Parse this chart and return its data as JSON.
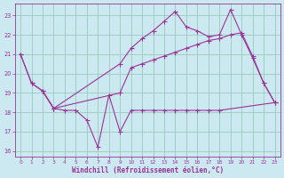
{
  "xlabel": "Windchill (Refroidissement éolien,°C)",
  "bg_color": "#cce8f0",
  "grid_color": "#99ccbb",
  "line_color": "#993399",
  "xlim": [
    -0.5,
    23.5
  ],
  "ylim": [
    15.7,
    23.6
  ],
  "yticks": [
    16,
    17,
    18,
    19,
    20,
    21,
    22,
    23
  ],
  "xticks": [
    0,
    1,
    2,
    3,
    4,
    5,
    6,
    7,
    8,
    9,
    10,
    11,
    12,
    13,
    14,
    15,
    16,
    17,
    18,
    19,
    20,
    21,
    22,
    23
  ],
  "line1_x": [
    0,
    1,
    2,
    3,
    9,
    10,
    11,
    12,
    13,
    14,
    15,
    16,
    17,
    18,
    19,
    20,
    21,
    22,
    23
  ],
  "line1_y": [
    21.0,
    19.5,
    19.1,
    18.2,
    19.0,
    20.3,
    20.5,
    20.7,
    20.9,
    21.1,
    21.3,
    21.5,
    21.7,
    21.8,
    22.0,
    22.1,
    20.9,
    19.5,
    18.5
  ],
  "line2_x": [
    0,
    1,
    2,
    3,
    9,
    10,
    11,
    12,
    13,
    14,
    15,
    16,
    17,
    18,
    19,
    20,
    21,
    22,
    23
  ],
  "line2_y": [
    21.0,
    19.5,
    19.1,
    18.2,
    20.5,
    21.3,
    21.8,
    22.2,
    22.7,
    23.2,
    22.4,
    22.2,
    21.9,
    22.0,
    23.3,
    22.0,
    20.8,
    19.5,
    18.5
  ],
  "line3_x": [
    2,
    3,
    4,
    5,
    6,
    7,
    8,
    9,
    10,
    11,
    12,
    13,
    14,
    15,
    16,
    17,
    18,
    23
  ],
  "line3_y": [
    19.1,
    18.2,
    18.1,
    18.1,
    17.6,
    16.2,
    18.9,
    17.0,
    18.1,
    18.1,
    18.1,
    18.1,
    18.1,
    18.1,
    18.1,
    18.1,
    18.1,
    18.5
  ]
}
